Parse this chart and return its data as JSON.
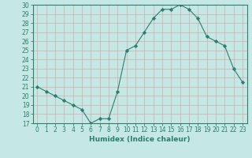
{
  "x": [
    0,
    1,
    2,
    3,
    4,
    5,
    6,
    7,
    8,
    9,
    10,
    11,
    12,
    13,
    14,
    15,
    16,
    17,
    18,
    19,
    20,
    21,
    22,
    23
  ],
  "y": [
    21.0,
    20.5,
    20.0,
    19.5,
    19.0,
    18.5,
    17.0,
    17.5,
    17.5,
    20.5,
    25.0,
    25.5,
    27.0,
    28.5,
    29.5,
    29.5,
    30.0,
    29.5,
    28.5,
    26.5,
    26.0,
    25.5,
    23.0,
    21.5
  ],
  "line_color": "#2e7d6e",
  "marker": "D",
  "marker_size": 2.2,
  "bg_color": "#c5e8e5",
  "grid_color": "#b0d8d5",
  "xlabel": "Humidex (Indice chaleur)",
  "ylim": [
    17,
    30
  ],
  "xlim": [
    -0.5,
    23.5
  ],
  "yticks": [
    17,
    18,
    19,
    20,
    21,
    22,
    23,
    24,
    25,
    26,
    27,
    28,
    29,
    30
  ],
  "xticks": [
    0,
    1,
    2,
    3,
    4,
    5,
    6,
    7,
    8,
    9,
    10,
    11,
    12,
    13,
    14,
    15,
    16,
    17,
    18,
    19,
    20,
    21,
    22,
    23
  ],
  "label_fontsize": 6.5,
  "tick_fontsize": 5.5
}
